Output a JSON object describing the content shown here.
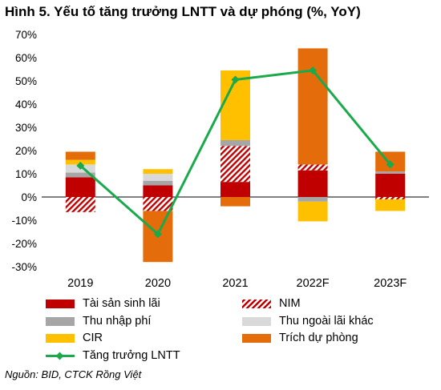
{
  "title": "Hình 5. Yếu tố tăng trưởng LNTT và dự phóng (%, YoY)",
  "source": "Nguồn: BID, CTCK Rồng Việt",
  "chart_data": {
    "type": "bar",
    "stacked": true,
    "categories": [
      "2019",
      "2020",
      "2021",
      "2022F",
      "2023F"
    ],
    "ylim": [
      -30,
      70
    ],
    "yticks": [
      -30,
      -20,
      -10,
      0,
      10,
      20,
      30,
      40,
      50,
      60,
      70
    ],
    "ytick_labels": [
      "-30%",
      "-20%",
      "-10%",
      "0%",
      "10%",
      "20%",
      "30%",
      "40%",
      "50%",
      "60%",
      "70%"
    ],
    "grid": false,
    "legend_position": "bottom",
    "series": [
      {
        "name": "Tài sản sinh lãi",
        "kind": "bar",
        "color": "#c00000",
        "pattern": "solid",
        "values": [
          8.5,
          5.0,
          6.5,
          11.5,
          10.0
        ]
      },
      {
        "name": "NIM",
        "kind": "bar",
        "color": "#c00000",
        "pattern": "hatch",
        "values": [
          -6.5,
          -6.0,
          15.5,
          2.5,
          -1.0
        ]
      },
      {
        "name": "Thu nhập phí",
        "kind": "bar",
        "color": "#a6a6a6",
        "pattern": "solid",
        "values": [
          2.0,
          2.0,
          2.5,
          -2.0,
          1.0
        ]
      },
      {
        "name": "Thu ngoài lãi khác",
        "kind": "bar",
        "color": "#d9d9d9",
        "pattern": "solid",
        "values": [
          3.5,
          3.0,
          0.0,
          0.0,
          0.0
        ]
      },
      {
        "name": "CIR",
        "kind": "bar",
        "color": "#ffc000",
        "pattern": "solid",
        "values": [
          2.0,
          2.0,
          30.0,
          -8.5,
          -5.0
        ]
      },
      {
        "name": "Trích dự phòng",
        "kind": "bar",
        "color": "#e46c0a",
        "pattern": "solid",
        "values": [
          3.5,
          -22.0,
          -4.0,
          50.0,
          8.5
        ]
      },
      {
        "name": "Tăng trưởng LNTT",
        "kind": "line",
        "color": "#1aaa4b",
        "marker": "diamond",
        "values": [
          13.5,
          -16.0,
          50.5,
          54.5,
          14.0
        ]
      }
    ]
  }
}
